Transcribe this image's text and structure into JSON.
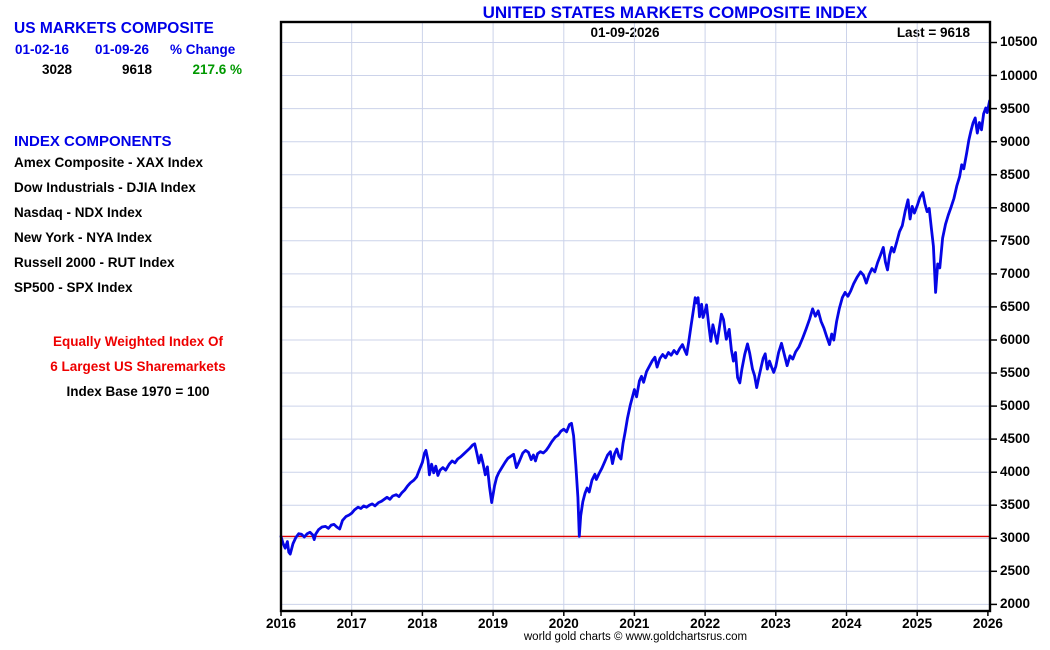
{
  "colors": {
    "accent_blue": "#0000e8",
    "line_blue": "#0606e6",
    "green": "#009900",
    "red_text": "#ee0000",
    "reference_red": "#dd0000",
    "grid": "#ccd3ea",
    "border": "#000000"
  },
  "summary": {
    "title": "US MARKETS COMPOSITE",
    "col_headers": [
      "01-02-16",
      "01-09-26",
      "% Change"
    ],
    "values": [
      "3028",
      "9618",
      "217.6 %"
    ]
  },
  "components": {
    "title": "INDEX COMPONENTS",
    "items": [
      "Amex Composite - XAX Index",
      "Dow Industrials - DJIA Index",
      "Nasdaq - NDX Index",
      "New York - NYA Index",
      "Russell 2000 - RUT Index",
      "SP500 - SPX Index"
    ]
  },
  "notes": {
    "line1": "Equally Weighted Index Of",
    "line2": "6 Largest US Sharemarkets",
    "line3": "Index Base 1970 = 100"
  },
  "chart_data": {
    "type": "line",
    "title": "UNITED STATES MARKETS COMPOSITE INDEX",
    "date_label": "01-09-2026",
    "last_label": "Last = 9618",
    "last_value": 9618,
    "footer": "world gold charts © www.goldchartsrus.com",
    "grid": true,
    "x_ticks": [
      2016,
      2017,
      2018,
      2019,
      2020,
      2021,
      2022,
      2023,
      2024,
      2025,
      2026
    ],
    "y_ticks": [
      2000,
      2500,
      3000,
      3500,
      4000,
      4500,
      5000,
      5500,
      6000,
      6500,
      7000,
      7500,
      8000,
      8500,
      9000,
      9500,
      10000,
      10500
    ],
    "x_range": [
      2016.0,
      2026.03
    ],
    "y_range": [
      1900,
      10810
    ],
    "reference_line": {
      "value": 3028,
      "color": "#dd0000"
    },
    "series": [
      {
        "name": "US Markets Composite",
        "color": "#0606e6",
        "x": [
          2016.0,
          2016.03,
          2016.06,
          2016.09,
          2016.11,
          2016.13,
          2016.17,
          2016.21,
          2016.25,
          2016.29,
          2016.33,
          2016.37,
          2016.41,
          2016.45,
          2016.47,
          2016.49,
          2016.53,
          2016.58,
          2016.63,
          2016.67,
          2016.71,
          2016.75,
          2016.79,
          2016.83,
          2016.87,
          2016.92,
          2016.96,
          2017.0,
          2017.04,
          2017.09,
          2017.13,
          2017.17,
          2017.21,
          2017.25,
          2017.29,
          2017.33,
          2017.38,
          2017.42,
          2017.46,
          2017.5,
          2017.54,
          2017.58,
          2017.63,
          2017.67,
          2017.71,
          2017.75,
          2017.79,
          2017.83,
          2017.88,
          2017.92,
          2017.96,
          2018.0,
          2018.03,
          2018.05,
          2018.08,
          2018.1,
          2018.13,
          2018.16,
          2018.19,
          2018.22,
          2018.25,
          2018.29,
          2018.33,
          2018.38,
          2018.42,
          2018.46,
          2018.5,
          2018.54,
          2018.58,
          2018.63,
          2018.67,
          2018.71,
          2018.74,
          2018.77,
          2018.8,
          2018.83,
          2018.86,
          2018.89,
          2018.92,
          2018.95,
          2018.98,
          2019.02,
          2019.05,
          2019.08,
          2019.13,
          2019.17,
          2019.21,
          2019.25,
          2019.29,
          2019.33,
          2019.37,
          2019.42,
          2019.46,
          2019.5,
          2019.54,
          2019.57,
          2019.6,
          2019.63,
          2019.67,
          2019.71,
          2019.75,
          2019.79,
          2019.83,
          2019.88,
          2019.92,
          2019.96,
          2020.0,
          2020.04,
          2020.08,
          2020.11,
          2020.14,
          2020.17,
          2020.2,
          2020.22,
          2020.24,
          2020.27,
          2020.3,
          2020.33,
          2020.36,
          2020.4,
          2020.44,
          2020.46,
          2020.5,
          2020.54,
          2020.58,
          2020.62,
          2020.66,
          2020.69,
          2020.72,
          2020.75,
          2020.78,
          2020.81,
          2020.84,
          2020.87,
          2020.9,
          2020.94,
          2020.97,
          2021.0,
          2021.03,
          2021.07,
          2021.1,
          2021.13,
          2021.17,
          2021.21,
          2021.25,
          2021.29,
          2021.32,
          2021.36,
          2021.4,
          2021.44,
          2021.48,
          2021.52,
          2021.56,
          2021.6,
          2021.64,
          2021.68,
          2021.71,
          2021.74,
          2021.77,
          2021.8,
          2021.83,
          2021.86,
          2021.88,
          2021.9,
          2021.92,
          2021.95,
          2021.97,
          2022.0,
          2022.02,
          2022.05,
          2022.08,
          2022.11,
          2022.14,
          2022.17,
          2022.2,
          2022.23,
          2022.26,
          2022.3,
          2022.34,
          2022.37,
          2022.4,
          2022.43,
          2022.46,
          2022.49,
          2022.52,
          2022.56,
          2022.6,
          2022.63,
          2022.67,
          2022.7,
          2022.73,
          2022.76,
          2022.79,
          2022.82,
          2022.85,
          2022.88,
          2022.91,
          2022.94,
          2022.97,
          2023.0,
          2023.04,
          2023.08,
          2023.12,
          2023.16,
          2023.2,
          2023.24,
          2023.28,
          2023.33,
          2023.38,
          2023.43,
          2023.48,
          2023.52,
          2023.56,
          2023.6,
          2023.64,
          2023.68,
          2023.72,
          2023.76,
          2023.79,
          2023.82,
          2023.86,
          2023.9,
          2023.94,
          2023.98,
          2024.02,
          2024.06,
          2024.1,
          2024.15,
          2024.2,
          2024.24,
          2024.28,
          2024.32,
          2024.36,
          2024.4,
          2024.44,
          2024.48,
          2024.52,
          2024.55,
          2024.58,
          2024.61,
          2024.64,
          2024.67,
          2024.71,
          2024.75,
          2024.79,
          2024.83,
          2024.87,
          2024.9,
          2024.93,
          2024.96,
          2025.0,
          2025.04,
          2025.08,
          2025.11,
          2025.14,
          2025.17,
          2025.2,
          2025.23,
          2025.26,
          2025.29,
          2025.32,
          2025.36,
          2025.4,
          2025.44,
          2025.48,
          2025.52,
          2025.56,
          2025.6,
          2025.63,
          2025.66,
          2025.7,
          2025.73,
          2025.76,
          2025.79,
          2025.82,
          2025.85,
          2025.88,
          2025.91,
          2025.94,
          2025.97,
          2025.99,
          2026.025
        ],
        "values": [
          3028,
          2920,
          2850,
          2950,
          2790,
          2760,
          2920,
          3010,
          3070,
          3060,
          3020,
          3070,
          3090,
          3050,
          2980,
          3060,
          3130,
          3170,
          3180,
          3150,
          3200,
          3210,
          3170,
          3140,
          3270,
          3330,
          3350,
          3380,
          3430,
          3470,
          3450,
          3490,
          3470,
          3500,
          3520,
          3490,
          3540,
          3560,
          3590,
          3620,
          3590,
          3640,
          3660,
          3630,
          3690,
          3730,
          3790,
          3840,
          3880,
          3930,
          4040,
          4150,
          4290,
          4330,
          4180,
          3960,
          4120,
          3990,
          4090,
          3950,
          4030,
          4070,
          4030,
          4120,
          4170,
          4140,
          4200,
          4230,
          4270,
          4320,
          4360,
          4410,
          4430,
          4290,
          4140,
          4260,
          4120,
          3960,
          4080,
          3780,
          3540,
          3790,
          3920,
          3990,
          4080,
          4150,
          4210,
          4240,
          4270,
          4070,
          4160,
          4290,
          4330,
          4300,
          4190,
          4260,
          4170,
          4280,
          4310,
          4290,
          4330,
          4390,
          4460,
          4530,
          4560,
          4620,
          4650,
          4610,
          4720,
          4740,
          4550,
          4110,
          3620,
          3030,
          3340,
          3550,
          3680,
          3760,
          3700,
          3880,
          3970,
          3890,
          3980,
          4060,
          4160,
          4260,
          4310,
          4130,
          4280,
          4350,
          4240,
          4200,
          4440,
          4620,
          4810,
          5010,
          5130,
          5250,
          5140,
          5380,
          5450,
          5360,
          5520,
          5600,
          5680,
          5740,
          5590,
          5720,
          5780,
          5730,
          5810,
          5770,
          5840,
          5790,
          5870,
          5930,
          5850,
          5780,
          5990,
          6210,
          6420,
          6640,
          6560,
          6640,
          6350,
          6540,
          6340,
          6440,
          6530,
          6230,
          5980,
          6230,
          6090,
          5950,
          6180,
          6390,
          6310,
          6010,
          6160,
          5860,
          5680,
          5810,
          5430,
          5350,
          5560,
          5780,
          5940,
          5800,
          5560,
          5460,
          5280,
          5440,
          5580,
          5720,
          5790,
          5560,
          5680,
          5590,
          5510,
          5600,
          5810,
          5950,
          5780,
          5610,
          5760,
          5710,
          5820,
          5900,
          6030,
          6170,
          6320,
          6470,
          6360,
          6440,
          6280,
          6180,
          6050,
          5930,
          6090,
          6000,
          6280,
          6480,
          6640,
          6720,
          6660,
          6740,
          6850,
          6950,
          7030,
          6980,
          6860,
          6990,
          7080,
          7030,
          7170,
          7280,
          7400,
          7180,
          7060,
          7280,
          7400,
          7330,
          7480,
          7640,
          7730,
          7950,
          8120,
          7830,
          8020,
          7920,
          8030,
          8160,
          8230,
          8060,
          7940,
          7990,
          7700,
          7420,
          6720,
          7150,
          7090,
          7540,
          7750,
          7890,
          8010,
          8140,
          8330,
          8470,
          8650,
          8590,
          8830,
          9020,
          9160,
          9280,
          9360,
          9130,
          9290,
          9180,
          9420,
          9510,
          9440,
          9618
        ]
      }
    ]
  }
}
